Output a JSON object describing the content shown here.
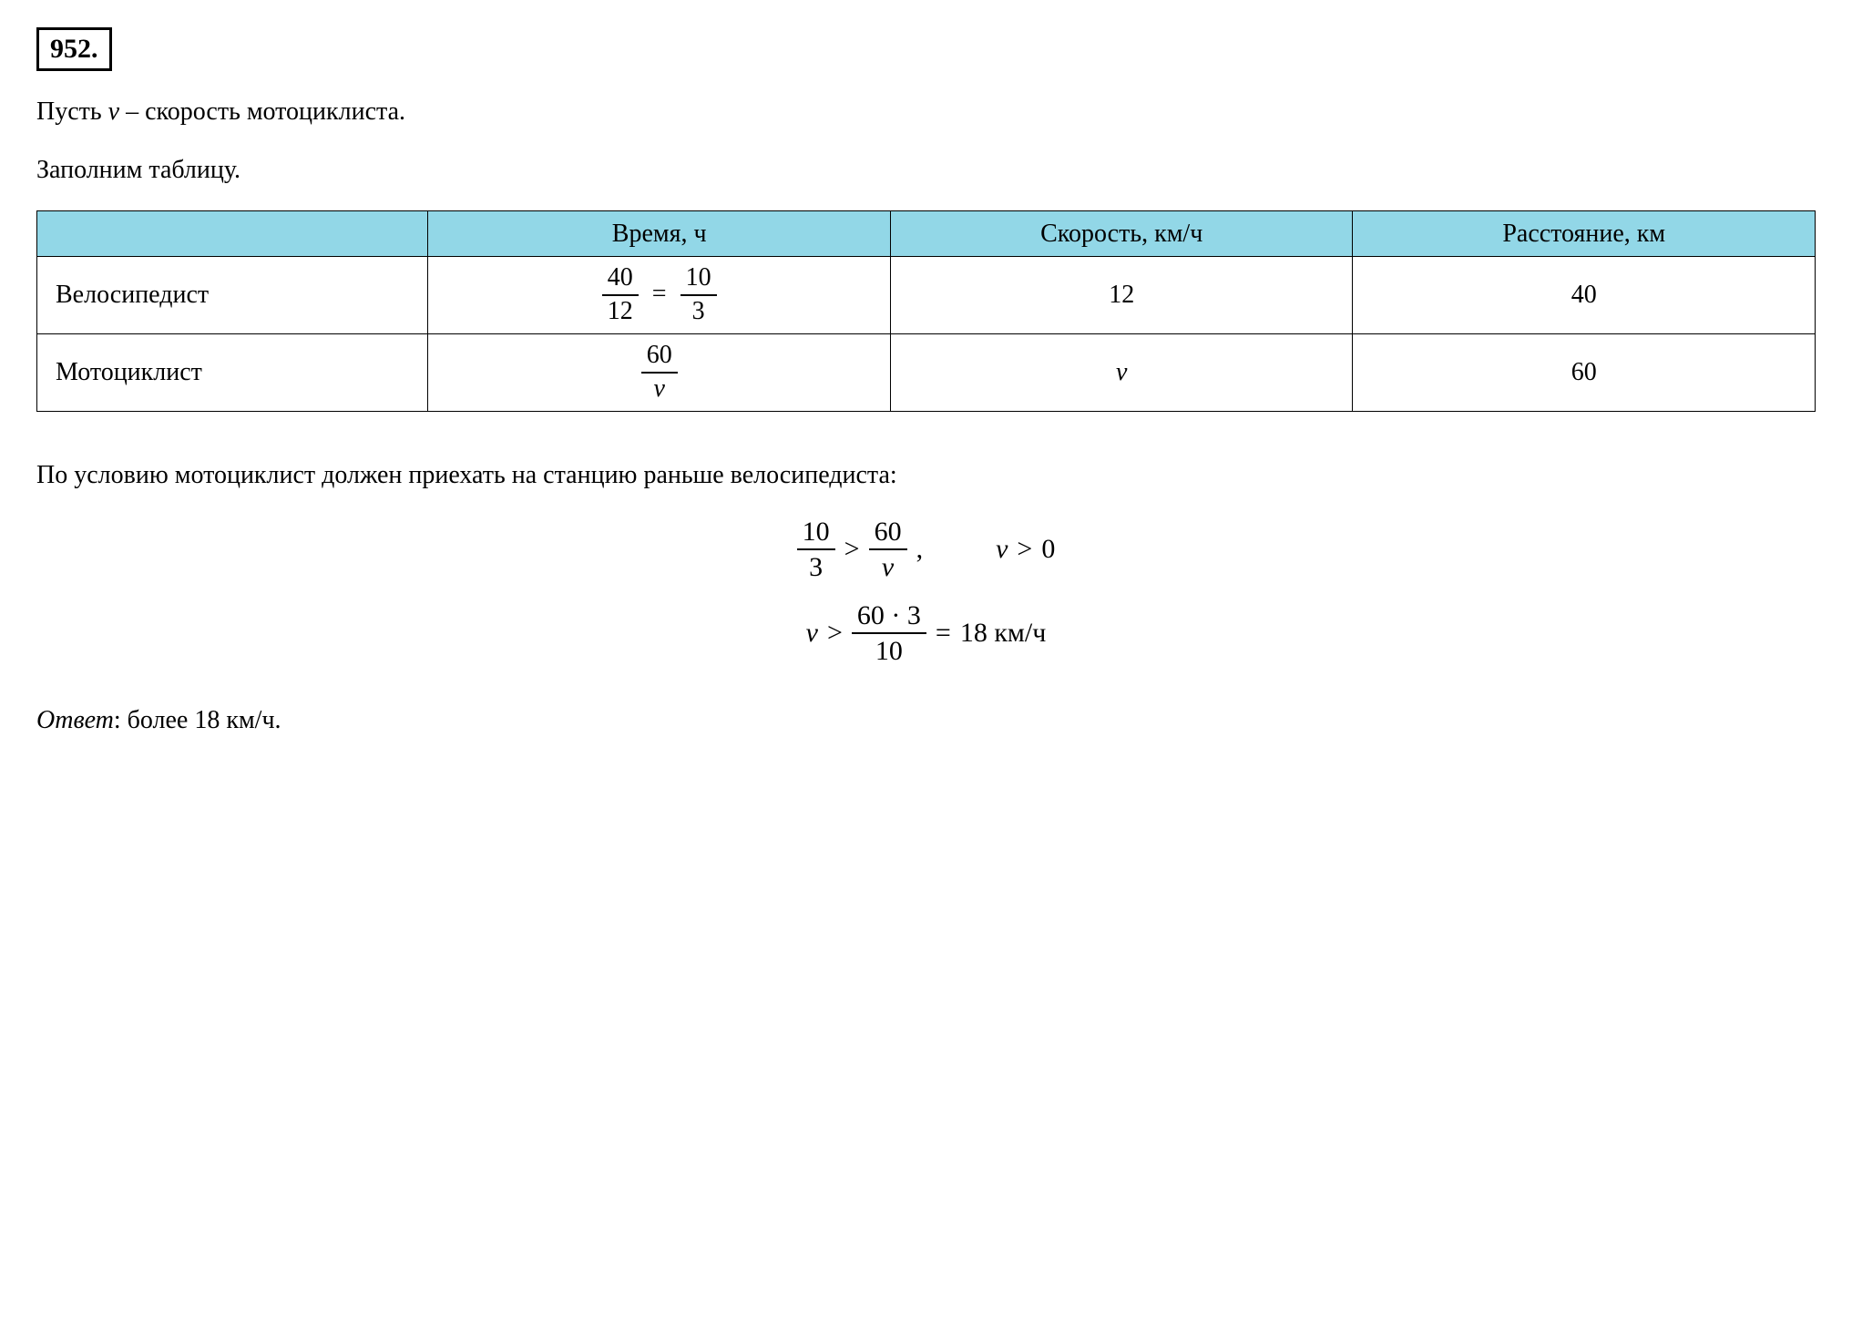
{
  "problem_number": "952.",
  "intro_text_1": "Пусть ",
  "intro_var": "v",
  "intro_text_2": " – скорость мотоциклиста.",
  "fill_table_text": "Заполним таблицу.",
  "table": {
    "header_row_label": "",
    "headers": {
      "time": "Время, ч",
      "speed": "Скорость, км/ч",
      "distance": "Расстояние, км"
    },
    "header_bg_color": "#92d7e7",
    "rows": [
      {
        "label": "Велосипедист",
        "time_frac1_num": "40",
        "time_frac1_den": "12",
        "time_eq": "=",
        "time_frac2_num": "10",
        "time_frac2_den": "3",
        "speed": "12",
        "distance": "40"
      },
      {
        "label": "Мотоциклист",
        "time_frac_num": "60",
        "time_frac_den": "v",
        "speed": "v",
        "distance": "60"
      }
    ],
    "border_color": "#000000"
  },
  "condition_text": "По условию мотоциклист должен приехать на станцию раньше велосипедиста:",
  "math": {
    "line1": {
      "frac1_num": "10",
      "frac1_den": "3",
      "op1": ">",
      "frac2_num": "60",
      "frac2_den": "v",
      "comma": ",",
      "var": "v",
      "op2": ">",
      "zero": "0"
    },
    "line2": {
      "var": "v",
      "op": ">",
      "frac_num": "60 · 3",
      "frac_den": "10",
      "eq": "=",
      "result": "18 км/ч"
    }
  },
  "answer": {
    "label": "Ответ",
    "colon": ": ",
    "text": "более 18 км/ч."
  },
  "colors": {
    "text": "#000000",
    "background": "#ffffff"
  },
  "fonts": {
    "family": "Times New Roman",
    "base_size_pt": 28,
    "problem_number_size_pt": 30,
    "math_size_pt": 30
  }
}
